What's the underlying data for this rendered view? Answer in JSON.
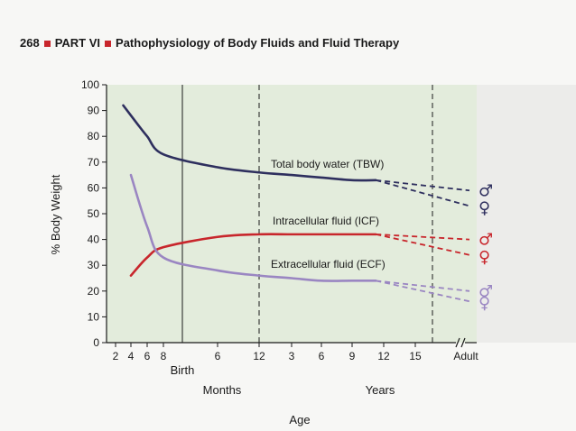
{
  "header": {
    "page_number": "268",
    "part": "PART VI",
    "title": "Pathophysiology of Body Fluids and Fluid Therapy"
  },
  "colors": {
    "plot_background": "#e3ecdc",
    "tbw": "#2e2f5e",
    "icf": "#c8262c",
    "ecf": "#9a86c2",
    "accent_square": "#c8262c"
  },
  "chart_data": {
    "type": "line",
    "ylabel": "% Body Weight",
    "xlabel": "Age",
    "ylim": [
      0,
      100
    ],
    "y_ticks": [
      0,
      10,
      20,
      30,
      40,
      50,
      60,
      70,
      80,
      90,
      100
    ],
    "x_ticks": [
      "2",
      "4",
      "6",
      "8",
      "6",
      "12",
      "3",
      "6",
      "9",
      "12",
      "15",
      "Adult"
    ],
    "x_group_labels": [
      "Birth",
      "Months",
      "Years"
    ],
    "grid": false,
    "series": [
      {
        "key": "tbw",
        "name": "Total body water (TBW)",
        "values": [
          [
            2,
            92
          ],
          [
            5.5,
            85
          ],
          [
            8,
            80
          ],
          [
            12,
            73
          ],
          [
            16,
            68
          ],
          [
            20,
            66
          ],
          [
            24,
            65
          ],
          [
            28,
            64
          ],
          [
            32,
            63
          ],
          [
            35,
            63
          ]
        ],
        "male": 59,
        "female": 53
      },
      {
        "key": "icf",
        "name": "Intracellular fluid (ICF)",
        "values": [
          [
            4,
            26
          ],
          [
            8,
            33
          ],
          [
            12,
            37
          ],
          [
            16,
            41
          ],
          [
            20,
            42
          ],
          [
            24,
            42
          ],
          [
            28,
            42
          ],
          [
            32,
            42
          ],
          [
            35,
            42
          ]
        ],
        "male": 40,
        "female": 34
      },
      {
        "key": "ecf",
        "name": "Extracellular fluid (ECF)",
        "values": [
          [
            4,
            65
          ],
          [
            8,
            45
          ],
          [
            12,
            33
          ],
          [
            16,
            28
          ],
          [
            20,
            26
          ],
          [
            24,
            25
          ],
          [
            28,
            24
          ],
          [
            32,
            24
          ],
          [
            35,
            24
          ]
        ],
        "male": 20,
        "female": 16
      }
    ],
    "annotations": {
      "gender_markers": [
        "♂",
        "♀"
      ]
    }
  }
}
